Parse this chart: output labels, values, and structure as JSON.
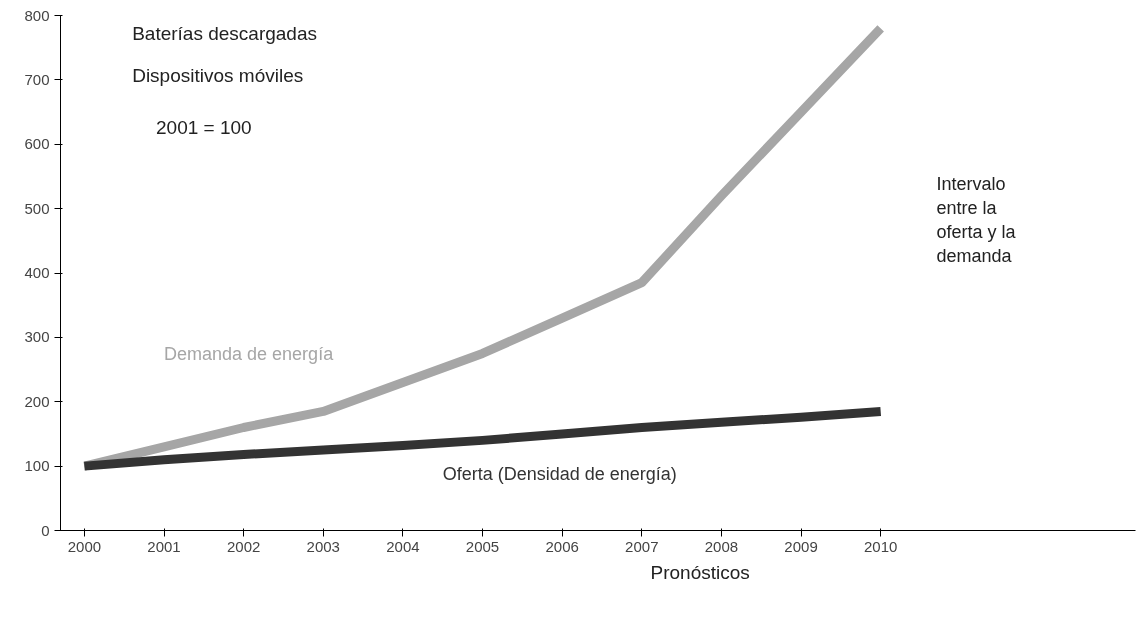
{
  "chart_data": {
    "type": "line",
    "categories": [
      "2000",
      "2001",
      "2002",
      "2003",
      "2004",
      "2005",
      "2006",
      "2007",
      "2008",
      "2009",
      "2010"
    ],
    "series": [
      {
        "name": "Demanda de energía",
        "color": "#a6a6a6",
        "values": [
          100,
          130,
          160,
          185,
          230,
          275,
          330,
          385,
          520,
          650,
          780
        ]
      },
      {
        "name": "Oferta (Densidad de energía)",
        "color": "#333333",
        "values": [
          100,
          110,
          118,
          125,
          132,
          140,
          150,
          160,
          168,
          176,
          185
        ]
      }
    ],
    "ylim": [
      0,
      800
    ],
    "yticks": [
      0,
      100,
      200,
      300,
      400,
      500,
      600,
      700,
      800
    ],
    "grid": false,
    "legend": false,
    "marker": "none",
    "line_style": "solid",
    "annotations": [
      "Baterías descargadas",
      "Dispositivos móviles",
      "2001 = 100",
      "Intervalo entre la oferta y la demanda",
      "Pronósticos"
    ]
  }
}
